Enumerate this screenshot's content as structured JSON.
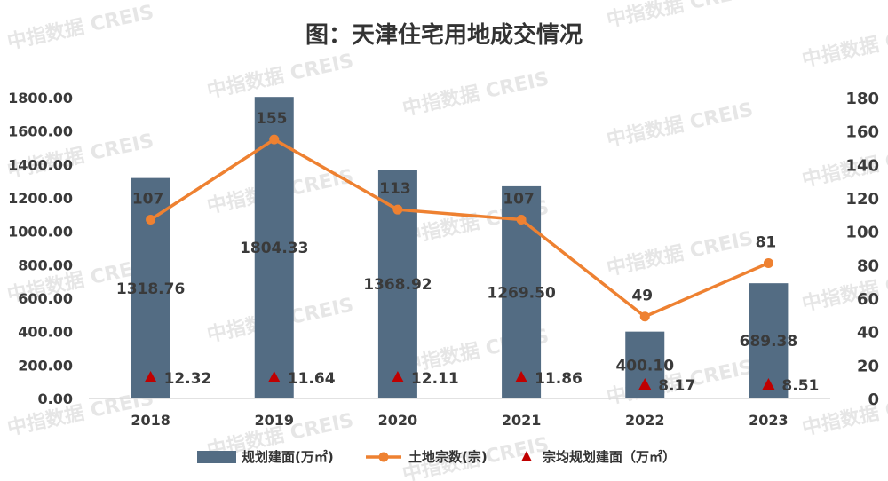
{
  "watermark": "中指数据 CREIS",
  "chart_data": {
    "type": "bar",
    "title": "图：天津住宅用地成交情况",
    "categories": [
      "2018",
      "2019",
      "2020",
      "2021",
      "2022",
      "2023"
    ],
    "y_left": {
      "min": 0,
      "max": 1800,
      "step": 200,
      "ticks": [
        "0.00",
        "200.00",
        "400.00",
        "600.00",
        "800.00",
        "1000.00",
        "1200.00",
        "1400.00",
        "1600.00",
        "1800.00"
      ]
    },
    "y_right": {
      "min": 0,
      "max": 180,
      "step": 20,
      "ticks": [
        "0",
        "20",
        "40",
        "60",
        "80",
        "100",
        "120",
        "140",
        "160",
        "180"
      ]
    },
    "series": [
      {
        "name": "规划建面(万㎡)",
        "kind": "bar",
        "axis": "left",
        "color": "#536c83",
        "values": [
          1318.76,
          1804.33,
          1368.92,
          1269.5,
          400.1,
          689.38
        ],
        "labels": [
          "1318.76",
          "1804.33",
          "1368.92",
          "1269.50",
          "400.10",
          "689.38"
        ]
      },
      {
        "name": "土地宗数(宗)",
        "kind": "line",
        "axis": "right",
        "color": "#ee8131",
        "values": [
          107,
          155,
          113,
          107,
          49,
          81
        ],
        "labels": [
          "107",
          "155",
          "113",
          "107",
          "49",
          "81"
        ]
      },
      {
        "name": "宗均规划建面（万㎡）",
        "kind": "marker",
        "color": "#c00000",
        "values": [
          12.32,
          11.64,
          12.11,
          11.86,
          8.17,
          8.51
        ],
        "labels": [
          "12.32",
          "11.64",
          "12.11",
          "11.86",
          "8.17",
          "8.51"
        ]
      }
    ],
    "legend_position": "bottom",
    "grid": false
  }
}
